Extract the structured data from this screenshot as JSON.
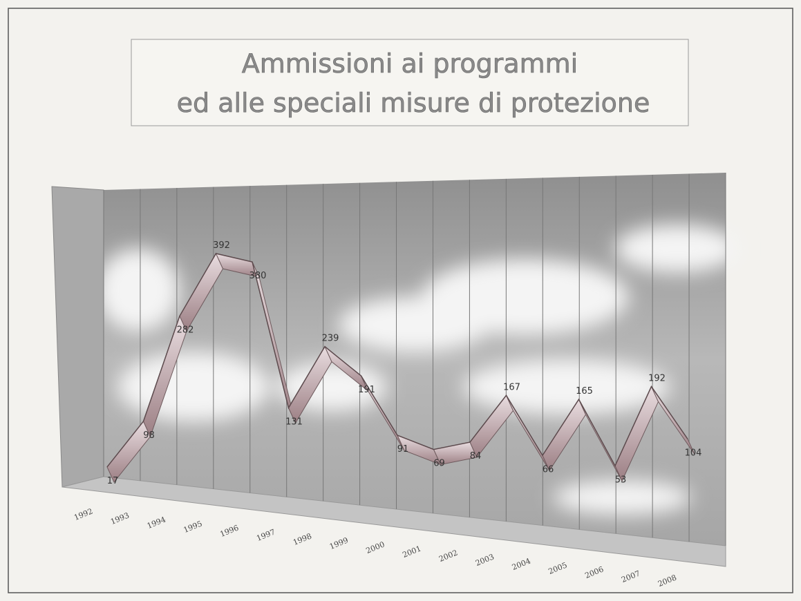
{
  "chart_data": {
    "type": "line",
    "title": [
      "Ammissioni ai programmi",
      "ed alle speciali misure di protezione"
    ],
    "categories": [
      "1992",
      "1993",
      "1994",
      "1995",
      "1996",
      "1997",
      "1998",
      "1999",
      "2000",
      "2001",
      "2002",
      "2003",
      "2004",
      "2005",
      "2006",
      "2007",
      "2008"
    ],
    "values": [
      17,
      98,
      282,
      392,
      380,
      131,
      239,
      191,
      91,
      69,
      84,
      167,
      66,
      165,
      53,
      192,
      104
    ],
    "color": "#b89a9e"
  }
}
